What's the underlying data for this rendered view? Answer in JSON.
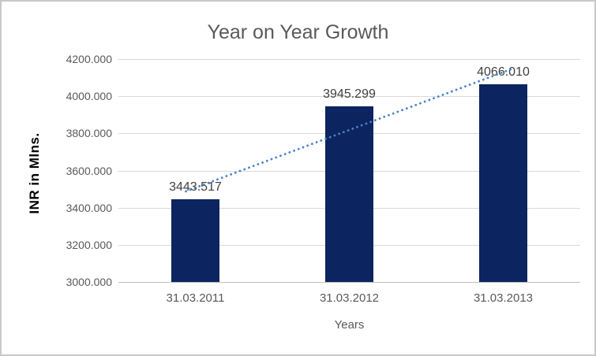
{
  "chart_data": {
    "type": "bar",
    "title": "Year on Year Growth",
    "xlabel": "Years",
    "ylabel": "INR in Mlns.",
    "categories": [
      "31.03.2011",
      "31.03.2012",
      "31.03.2013"
    ],
    "values": [
      3443.517,
      3945.299,
      4066.01
    ],
    "value_labels": [
      "3443.517",
      "3945.299",
      "4066.010"
    ],
    "ylim": [
      3000,
      4200
    ],
    "yticks": [
      3000,
      3200,
      3400,
      3600,
      3800,
      4000,
      4200
    ],
    "ytick_labels": [
      "3000.000",
      "3200.000",
      "3400.000",
      "3600.000",
      "3800.000",
      "4000.000",
      "4200.000"
    ],
    "grid": true,
    "legend": false,
    "trendline": {
      "type": "linear",
      "style": "dotted"
    },
    "colors": {
      "bar": "#0c245f",
      "trendline": "#4a82cc",
      "gridline": "#d9d9d9",
      "axis_line": "#bfbfbf",
      "title_text": "#595959",
      "tick_text": "#595959",
      "data_label_text": "#3f3f3f",
      "y_axis_title_text": "#000000",
      "chart_border": "#c9c9c9",
      "background": "#ffffff"
    }
  }
}
